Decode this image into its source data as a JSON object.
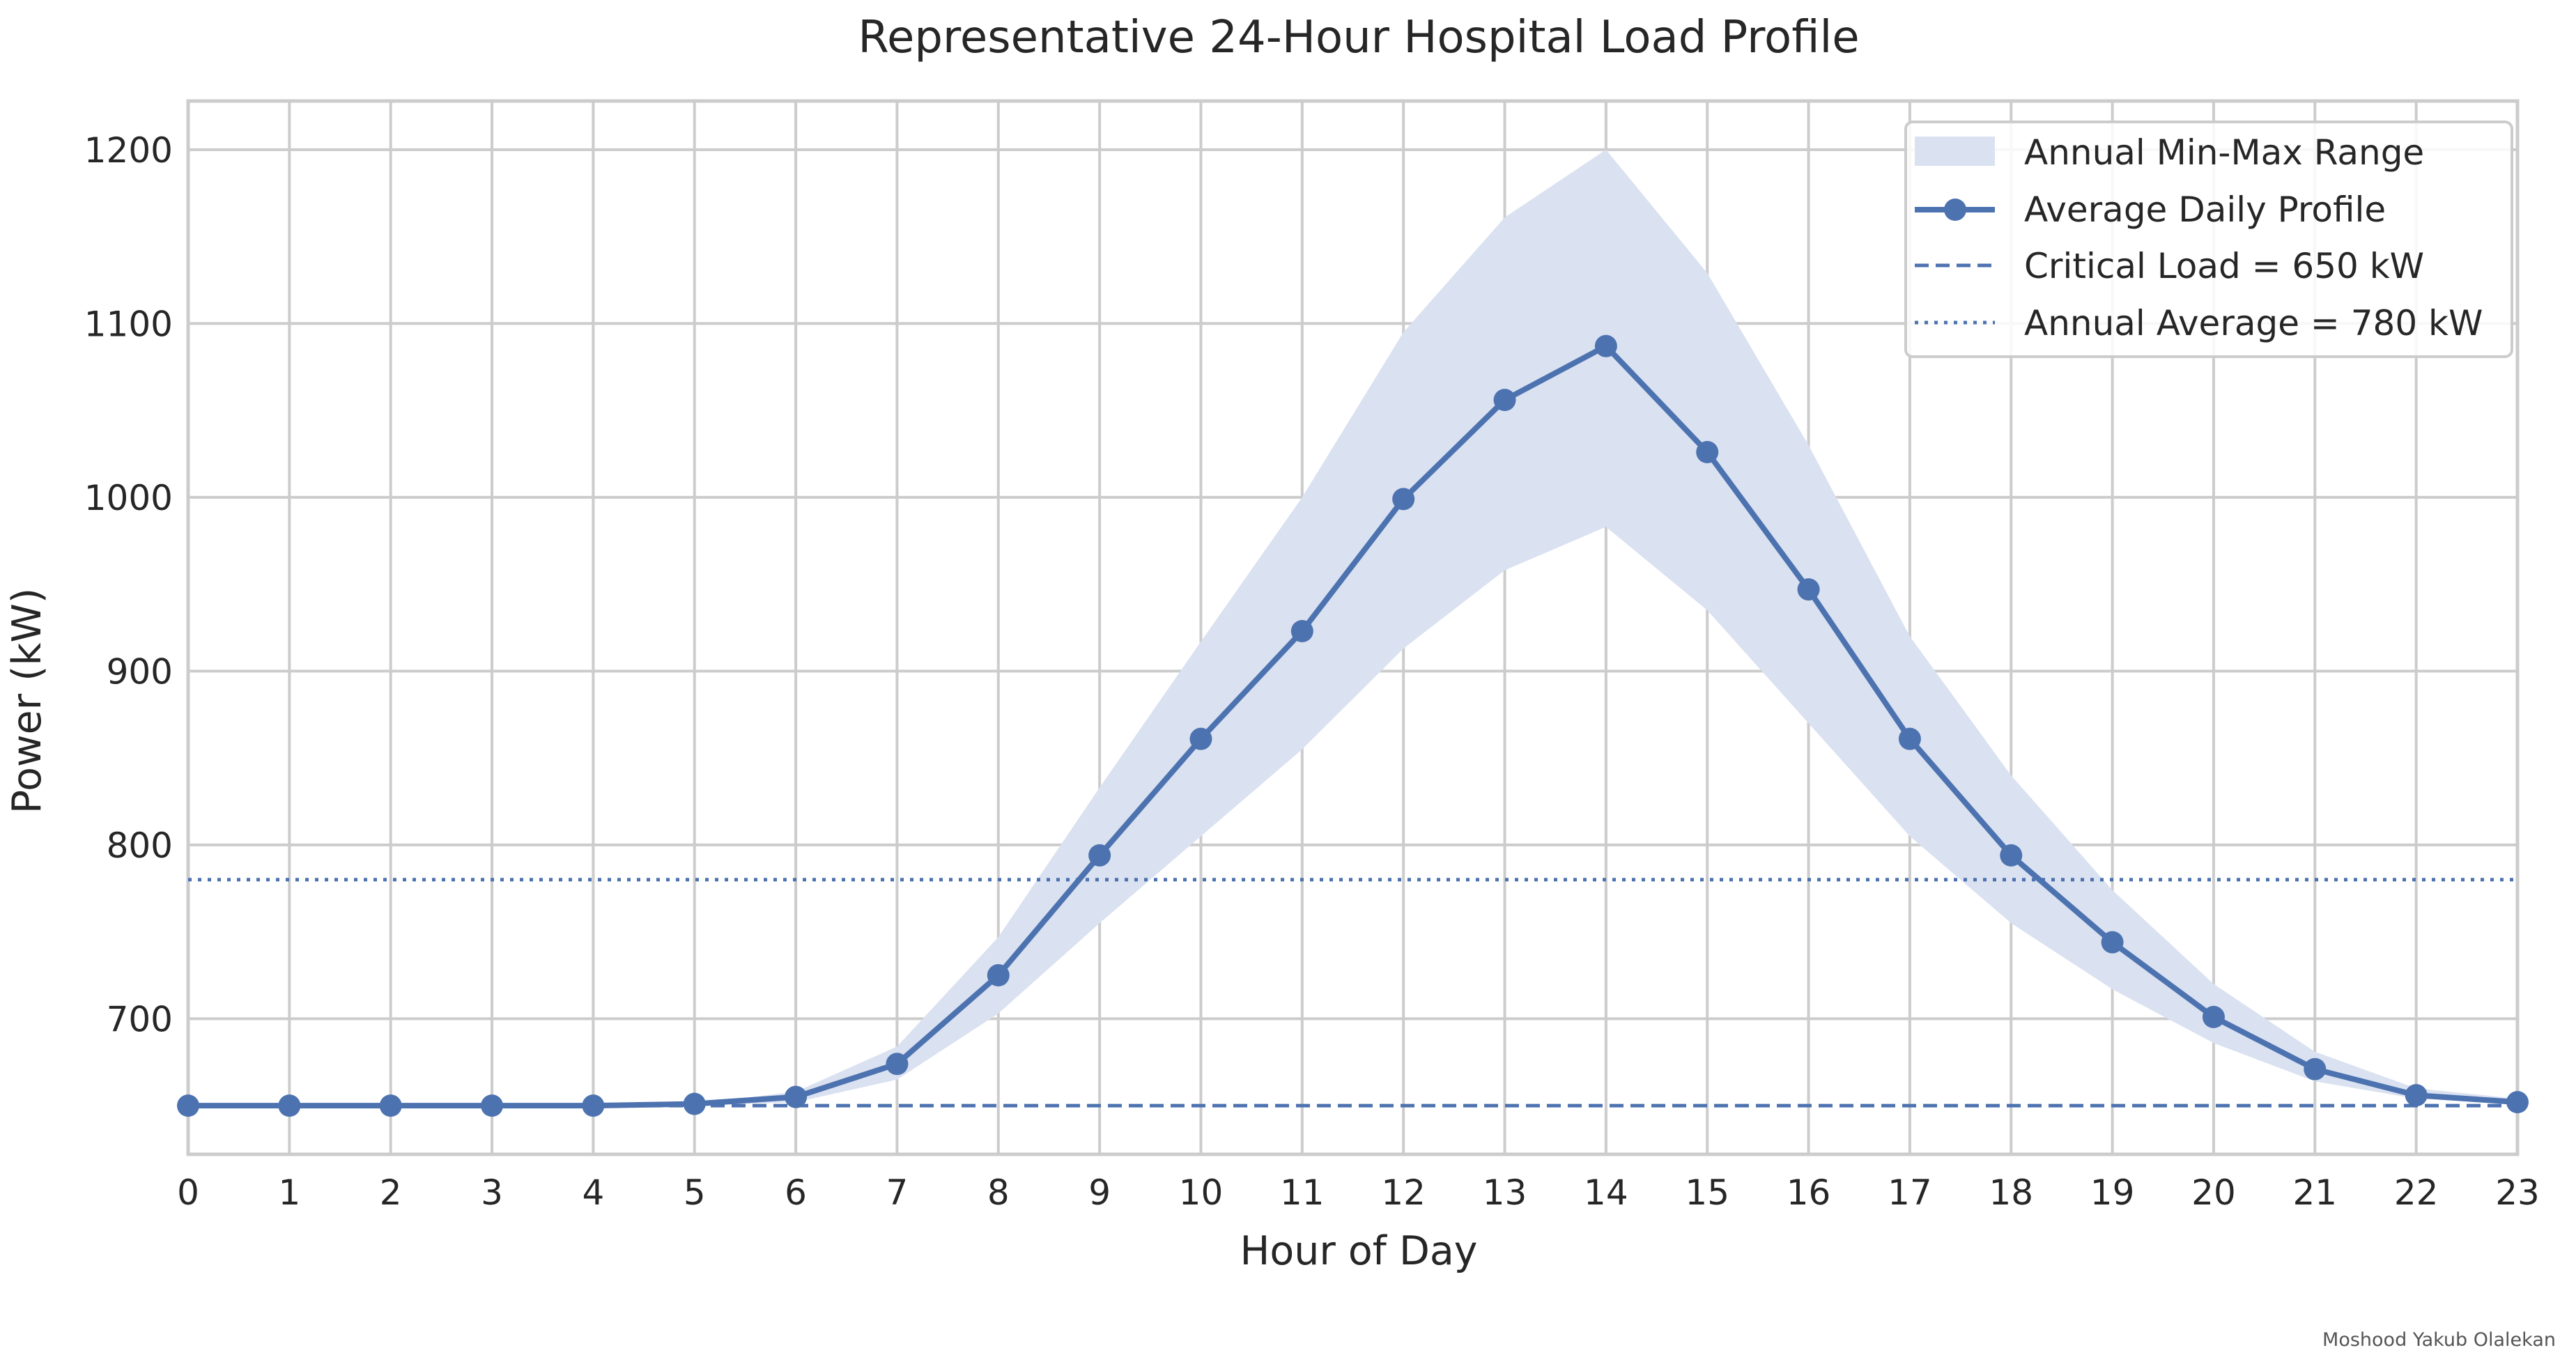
{
  "chart_data": {
    "type": "line",
    "title": "Representative 24-Hour Hospital Load Profile",
    "xlabel": "Hour of Day",
    "ylabel": "Power (kW)",
    "x": [
      0,
      1,
      2,
      3,
      4,
      5,
      6,
      7,
      8,
      9,
      10,
      11,
      12,
      13,
      14,
      15,
      16,
      17,
      18,
      19,
      20,
      21,
      22,
      23
    ],
    "xticks": [
      "0",
      "1",
      "2",
      "3",
      "4",
      "5",
      "6",
      "7",
      "8",
      "9",
      "10",
      "11",
      "12",
      "13",
      "14",
      "15",
      "16",
      "17",
      "18",
      "19",
      "20",
      "21",
      "22",
      "23"
    ],
    "xlim": [
      0,
      23
    ],
    "ylim": [
      622,
      1228
    ],
    "yticks": [
      "700",
      "800",
      "900",
      "1000",
      "1100",
      "1200"
    ],
    "grid": true,
    "legend_position": "top-right",
    "series": [
      {
        "name": "Average Daily Profile",
        "style": "line-with-markers",
        "color": "#4c72b0",
        "values": [
          650,
          650,
          650,
          650,
          650,
          651,
          655,
          674,
          725,
          794,
          861,
          923,
          999,
          1056,
          1087,
          1026,
          947,
          861,
          794,
          744,
          701,
          671,
          656,
          652
        ]
      }
    ],
    "band": {
      "name": "Annual Min-Max Range",
      "color": "#dae1f0",
      "lower": [
        650,
        650,
        650,
        650,
        650,
        650,
        652,
        665,
        703,
        755,
        805,
        855,
        913,
        958,
        983,
        935,
        870,
        805,
        755,
        717,
        686,
        664,
        654,
        651
      ],
      "upper": [
        650,
        650,
        650,
        650,
        650,
        651,
        658,
        684,
        747,
        833,
        917,
        1000,
        1095,
        1161,
        1200,
        1129,
        1030,
        920,
        840,
        774,
        720,
        681,
        660,
        654
      ]
    },
    "reference_lines": [
      {
        "name": "Critical Load = 650 kW",
        "value": 650,
        "style": "dashed",
        "color": "#4c72b0"
      },
      {
        "name": "Annual Average = 780 kW",
        "value": 780,
        "style": "dotted",
        "color": "#4c72b0"
      }
    ]
  },
  "footer": {
    "credit": "Moshood Yakub Olalekan"
  }
}
